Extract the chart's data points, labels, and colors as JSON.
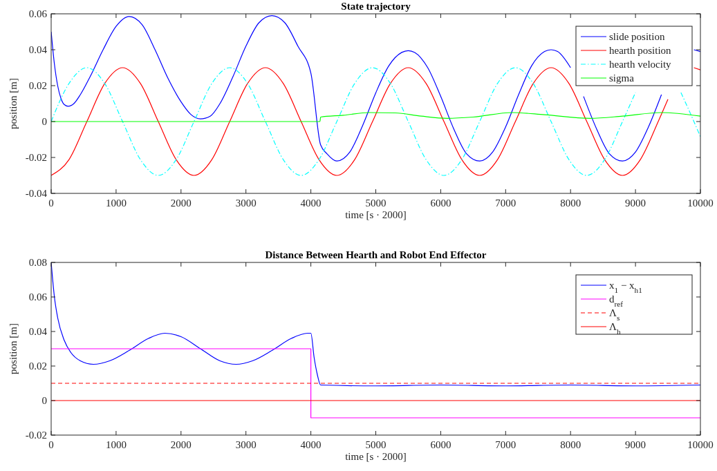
{
  "chart_data": [
    {
      "type": "line",
      "title": "State trajectory",
      "xlabel": "time [s · 2000]",
      "ylabel": "position [m]",
      "xlim": [
        0,
        10000
      ],
      "xticks": [
        0,
        1000,
        2000,
        3000,
        4000,
        5000,
        6000,
        7000,
        8000,
        9000,
        10000
      ],
      "ylim": [
        -0.04,
        0.06
      ],
      "yticks": [
        -0.04,
        -0.02,
        0,
        0.02,
        0.04,
        0.06
      ],
      "grid": false,
      "legend": "top right",
      "series": [
        {
          "name": "slide position",
          "color": "#0000ff",
          "line_style": "solid",
          "x": [
            0,
            50,
            100,
            150,
            200,
            260,
            350,
            450,
            600,
            800,
            1000,
            1200,
            1400,
            1600,
            1800,
            2000,
            2150,
            2300,
            2450,
            2600,
            2800,
            3000,
            3200,
            3400,
            3600,
            3800,
            4000,
            4150,
            4250,
            4400,
            4600,
            4800,
            5000,
            5200,
            5400,
            5500,
            5600,
            5800,
            6000,
            6200,
            6400,
            6600,
            6800,
            7000,
            7200,
            7400,
            7600,
            7700,
            7800,
            8000,
            8100,
            8200,
            8400,
            8600,
            8800,
            9000,
            9200,
            9400,
            9600,
            9800,
            9900,
            10000
          ],
          "values": [
            0.05,
            0.032,
            0.02,
            0.013,
            0.0095,
            0.0085,
            0.01,
            0.015,
            0.025,
            0.04,
            0.053,
            0.0585,
            0.054,
            0.04,
            0.024,
            0.011,
            0.004,
            0.0015,
            0.003,
            0.01,
            0.025,
            0.042,
            0.055,
            0.059,
            0.055,
            0.042,
            0.027,
            -0.013,
            -0.018,
            -0.022,
            -0.017,
            -0.002,
            0.016,
            0.031,
            0.0385,
            0.0395,
            0.0385,
            0.03,
            0.014,
            -0.004,
            -0.018,
            -0.022,
            -0.017,
            -0.003,
            0.015,
            0.031,
            0.039,
            0.04,
            0.039,
            0.03,
            null,
            0.014,
            -0.004,
            -0.018,
            -0.022,
            -0.017,
            -0.003,
            0.015,
            null,
            null,
            0.04,
            0.039
          ]
        },
        {
          "name": "hearth position",
          "color": "#ff0000",
          "line_style": "solid",
          "x": [
            0,
            275,
            550,
            825,
            1100,
            1375,
            1650,
            1925,
            2200,
            2475,
            2750,
            3025,
            3300,
            3575,
            3850,
            4125,
            4400,
            4675,
            4950,
            5225,
            5500,
            5775,
            6050,
            6325,
            6600,
            6875,
            7150,
            7425,
            7700,
            7975,
            8250,
            8525,
            8800,
            9075,
            9350,
            9500,
            9625,
            9900,
            10000
          ],
          "values": [
            -0.03,
            -0.0212,
            0,
            0.0212,
            0.03,
            0.0212,
            0,
            -0.0212,
            -0.03,
            -0.0212,
            0,
            0.0212,
            0.03,
            0.0212,
            0,
            -0.0212,
            -0.03,
            -0.0212,
            0,
            0.0212,
            0.03,
            0.0212,
            0,
            -0.0212,
            -0.03,
            -0.0212,
            0,
            0.0212,
            0.03,
            0.0212,
            0,
            -0.0212,
            -0.03,
            -0.0212,
            0,
            0.0124,
            null,
            0.03,
            0.0288
          ]
        },
        {
          "name": "hearth velocity",
          "color": "#00ffff",
          "line_style": "dashdot",
          "x": [
            0,
            275,
            550,
            825,
            1100,
            1375,
            1650,
            1925,
            2200,
            2475,
            2750,
            3025,
            3300,
            3575,
            3850,
            4125,
            4400,
            4675,
            4950,
            5225,
            5500,
            5775,
            6050,
            6325,
            6600,
            6875,
            7150,
            7425,
            7700,
            7975,
            8250,
            8525,
            8800,
            9000,
            9075,
            9700,
            9900,
            10000
          ],
          "values": [
            0,
            0.0212,
            0.03,
            0.0212,
            0,
            -0.0212,
            -0.03,
            -0.0212,
            0,
            0.0212,
            0.03,
            0.0212,
            0,
            -0.0212,
            -0.03,
            -0.0212,
            0,
            0.0212,
            0.03,
            0.0212,
            0,
            -0.0212,
            -0.03,
            -0.0212,
            0,
            0.0212,
            0.03,
            0.0212,
            0,
            -0.0212,
            -0.03,
            -0.0212,
            0,
            0.0162,
            null,
            0.0162,
            0,
            -0.0085
          ]
        },
        {
          "name": "sigma",
          "color": "#00ff00",
          "line_style": "solid",
          "x": [
            0,
            4140,
            4150,
            4500,
            4900,
            5300,
            5700,
            6100,
            6500,
            7100,
            7600,
            8300,
            8800,
            9400,
            10000
          ],
          "values": [
            0,
            0,
            0.0025,
            0.0035,
            0.005,
            0.0048,
            0.003,
            0.0018,
            0.0025,
            0.005,
            0.0038,
            0.0018,
            0.003,
            0.005,
            0.003
          ]
        }
      ]
    },
    {
      "type": "line",
      "title": "Distance Between Hearth and Robot End Effector",
      "xlabel": "time [s · 2000]",
      "ylabel": "position [m]",
      "xlim": [
        0,
        10000
      ],
      "xticks": [
        0,
        1000,
        2000,
        3000,
        4000,
        5000,
        6000,
        7000,
        8000,
        9000,
        10000
      ],
      "ylim": [
        -0.02,
        0.08
      ],
      "yticks": [
        -0.02,
        0,
        0.02,
        0.04,
        0.06,
        0.08
      ],
      "grid": false,
      "legend": "top right",
      "series": [
        {
          "name": "x$_{1}$ − x$_{h1}$",
          "color": "#0000ff",
          "line_style": "solid",
          "x": [
            0,
            50,
            100,
            200,
            300,
            450,
            650,
            900,
            1200,
            1500,
            1750,
            2000,
            2300,
            2600,
            2850,
            3100,
            3400,
            3700,
            3950,
            4000,
            4050,
            4100,
            4150,
            5000,
            6000,
            7000,
            8000,
            9000,
            10000
          ],
          "values": [
            0.08,
            0.06,
            0.048,
            0.035,
            0.028,
            0.023,
            0.021,
            0.023,
            0.029,
            0.036,
            0.039,
            0.037,
            0.03,
            0.023,
            0.021,
            0.023,
            0.029,
            0.036,
            0.039,
            0.039,
            0.025,
            0.015,
            0.009,
            0.0085,
            0.009,
            0.0085,
            0.009,
            0.0085,
            0.009
          ]
        },
        {
          "name": "d$_{ref}$",
          "color": "#ff00ff",
          "line_style": "solid",
          "x": [
            0,
            4000,
            4000,
            10000
          ],
          "values": [
            0.03,
            0.03,
            -0.01,
            -0.01
          ]
        },
        {
          "name": "Λ$_{s}$",
          "color": "#ff0000",
          "line_style": "dashed",
          "x": [
            0,
            10000
          ],
          "values": [
            0.01,
            0.01
          ]
        },
        {
          "name": "Λ$_{h}$",
          "color": "#ff0000",
          "line_style": "solid",
          "x": [
            0,
            10000
          ],
          "values": [
            0,
            0
          ]
        }
      ]
    }
  ]
}
